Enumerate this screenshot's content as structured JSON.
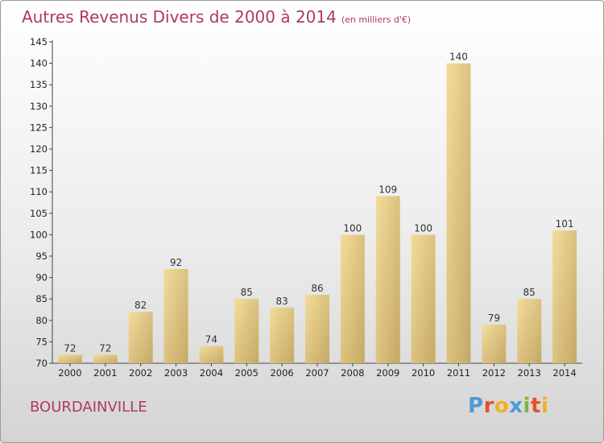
{
  "title": "Autres Revenus Divers de 2000 à 2014",
  "unit": "(en milliers d'€)",
  "location": "BOURDAINVILLE",
  "logo": "Proxiti",
  "colors": {
    "title": "#b03a5b",
    "bar_light": "#f3dc9b",
    "bar_dark": "#c5a865",
    "logo": [
      "#4e9ad6",
      "#e0522c",
      "#f0b020",
      "#4e9ad6",
      "#7fb641",
      "#e0522c",
      "#f0b020"
    ]
  },
  "chart_data": {
    "type": "bar",
    "title": "Autres Revenus Divers de 2000 à 2014",
    "xlabel": "",
    "ylabel": "",
    "categories": [
      "2000",
      "2001",
      "2002",
      "2003",
      "2004",
      "2005",
      "2006",
      "2007",
      "2008",
      "2009",
      "2010",
      "2011",
      "2012",
      "2013",
      "2014"
    ],
    "values": [
      72,
      72,
      82,
      92,
      74,
      85,
      83,
      86,
      100,
      109,
      100,
      140,
      79,
      85,
      101
    ],
    "ylim": [
      70,
      145
    ],
    "yticks": [
      70,
      75,
      80,
      85,
      90,
      95,
      100,
      105,
      110,
      115,
      120,
      125,
      130,
      135,
      140,
      145
    ],
    "grid": false,
    "legend": "none"
  }
}
